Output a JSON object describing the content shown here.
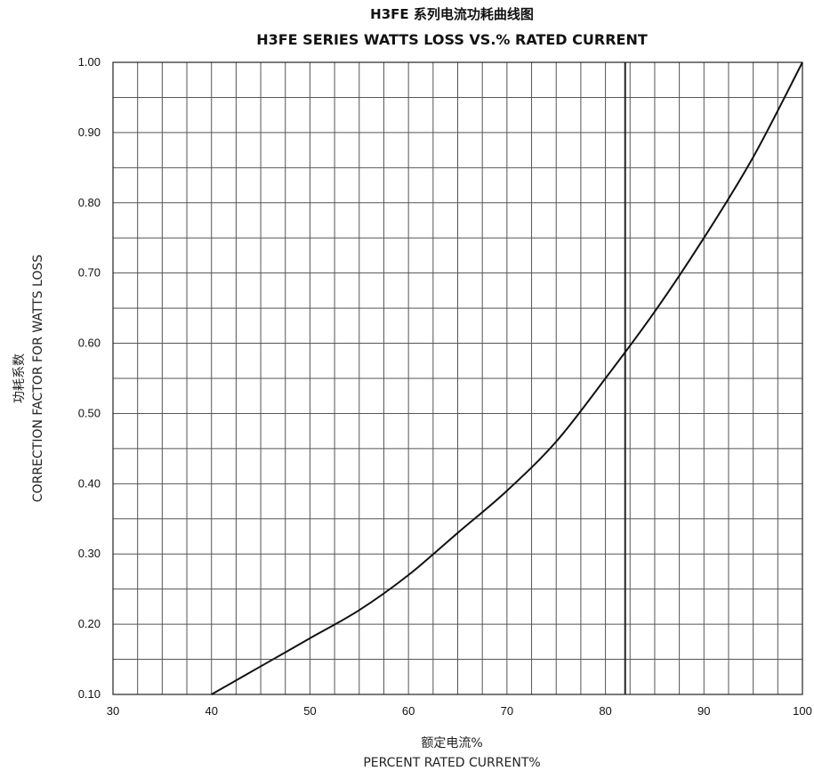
{
  "chart_data": {
    "type": "line",
    "title": "H3FE 系列电流功耗曲线图",
    "subtitle": "H3FE SERIES WATTS LOSS VS.% RATED CURRENT",
    "xlabel": "额定电流%",
    "xlabel_en": "PERCENT RATED CURRENT%",
    "ylabel": "功耗系数",
    "ylabel_en": "CORRECTION FACTOR FOR WATTS LOSS",
    "xlim": [
      30,
      100
    ],
    "ylim": [
      0.1,
      1.0
    ],
    "xticks": [
      "30",
      "40",
      "50",
      "60",
      "70",
      "80",
      "90",
      "100"
    ],
    "yticks": [
      "0.10",
      "0.20",
      "0.30",
      "0.40",
      "0.50",
      "0.60",
      "0.70",
      "0.80",
      "0.90",
      "1.00"
    ],
    "grid": true,
    "x_minor_step": 2.5,
    "y_minor_step": 0.05,
    "x_highlight": 82,
    "series": [
      {
        "x": [
          40,
          45,
          50,
          55,
          60,
          65,
          70,
          75,
          80,
          85,
          90,
          95,
          100
        ],
        "y": [
          0.1,
          0.14,
          0.18,
          0.22,
          0.27,
          0.33,
          0.39,
          0.46,
          0.55,
          0.645,
          0.75,
          0.865,
          1.0
        ]
      }
    ]
  }
}
